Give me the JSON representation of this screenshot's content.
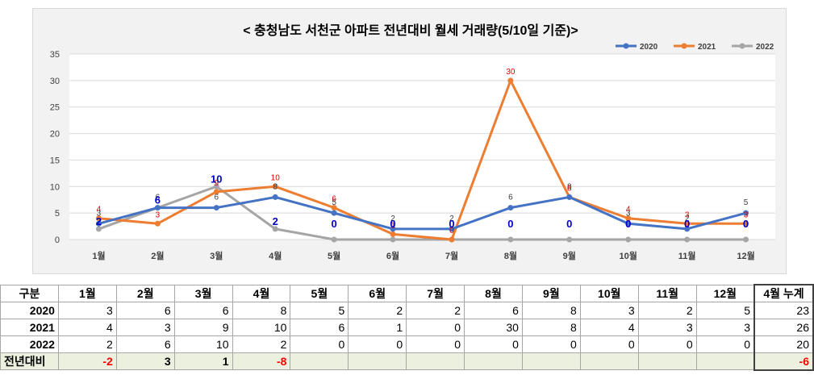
{
  "chart_data": {
    "type": "line",
    "title": "< 충청남도 서천군  아파트 전년대비 월세 거래량(5/10일 기준)>",
    "categories": [
      "1월",
      "2월",
      "3월",
      "4월",
      "5월",
      "6월",
      "7월",
      "8월",
      "9월",
      "10월",
      "11월",
      "12월"
    ],
    "ylim": [
      0,
      35
    ],
    "yticks": [
      0,
      5,
      10,
      15,
      20,
      25,
      30,
      35
    ],
    "grid": true,
    "legend_position": "top-right",
    "series": [
      {
        "name": "2020",
        "color": "#4472c4",
        "values": [
          3,
          6,
          6,
          8,
          5,
          2,
          2,
          6,
          8,
          3,
          2,
          5
        ],
        "label_color": "#404040"
      },
      {
        "name": "2021",
        "color": "#ed7d31",
        "values": [
          4,
          3,
          9,
          10,
          6,
          1,
          0,
          30,
          8,
          4,
          3,
          3
        ],
        "label_color": "#e00000"
      },
      {
        "name": "2022",
        "color": "#a5a5a5",
        "values": [
          2,
          6,
          10,
          2,
          0,
          0,
          0,
          0,
          0,
          0,
          0,
          0
        ],
        "label_color": "#0000cc"
      }
    ]
  },
  "table": {
    "header": [
      "구분",
      "1월",
      "2월",
      "3월",
      "4월",
      "5월",
      "6월",
      "7월",
      "8월",
      "9월",
      "10월",
      "11월",
      "12월",
      "4월 누계"
    ],
    "rows": [
      {
        "label": "2020",
        "cells": [
          "3",
          "6",
          "6",
          "8",
          "5",
          "2",
          "2",
          "6",
          "8",
          "3",
          "2",
          "5",
          "23"
        ]
      },
      {
        "label": "2021",
        "cells": [
          "4",
          "3",
          "9",
          "10",
          "6",
          "1",
          "0",
          "30",
          "8",
          "4",
          "3",
          "3",
          "26"
        ]
      },
      {
        "label": "2022",
        "cells": [
          "2",
          "6",
          "10",
          "2",
          "0",
          "0",
          "0",
          "0",
          "0",
          "0",
          "0",
          "0",
          "20"
        ]
      },
      {
        "label": "전년대비",
        "cells": [
          "-2",
          "3",
          "1",
          "-8",
          "",
          "",
          "",
          "",
          "",
          "",
          "",
          "",
          "-6"
        ]
      }
    ]
  }
}
